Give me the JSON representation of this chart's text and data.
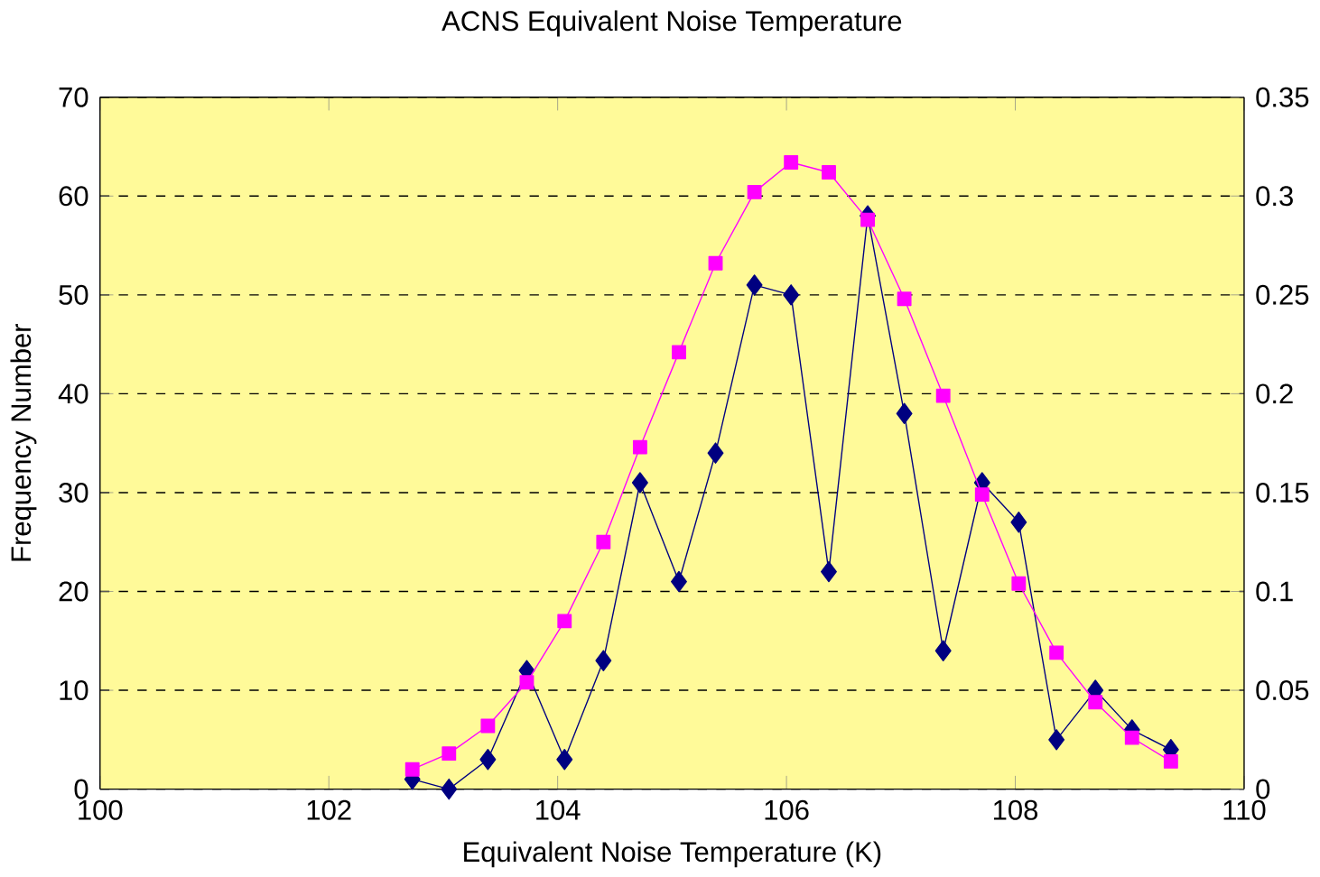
{
  "chart_data": {
    "type": "line",
    "title": "ACNS Equivalent Noise Temperature",
    "xlabel": "Equivalent Noise Temperature (K)",
    "ylabel": "Frequency Number",
    "xlim": [
      100,
      110
    ],
    "xticks": [
      100,
      102,
      104,
      106,
      108,
      110
    ],
    "ylim": [
      0,
      70
    ],
    "yticks": [
      0,
      10,
      20,
      30,
      40,
      50,
      60,
      70
    ],
    "y2lim": [
      0,
      0.35
    ],
    "y2ticks": [
      0,
      0.05,
      0.1,
      0.15,
      0.2,
      0.25,
      0.3,
      0.35
    ],
    "grid": "y",
    "series": [
      {
        "color": "#000080",
        "marker": "diamond",
        "x": [
          102.73,
          103.05,
          103.39,
          103.73,
          104.06,
          104.4,
          104.72,
          105.06,
          105.38,
          105.72,
          106.04,
          106.37,
          106.71,
          107.03,
          107.37,
          107.71,
          108.03,
          108.36,
          108.7,
          109.02,
          109.36
        ],
        "values": [
          1,
          0,
          3,
          12,
          3,
          13,
          31,
          21,
          34,
          51,
          50,
          22,
          58,
          38,
          14,
          31,
          27,
          5,
          10,
          6,
          4
        ]
      },
      {
        "color": "#ff00ff",
        "marker": "square",
        "axis": "y2",
        "x": [
          102.73,
          103.05,
          103.39,
          103.73,
          104.06,
          104.4,
          104.72,
          105.06,
          105.38,
          105.72,
          106.04,
          106.37,
          106.71,
          107.03,
          107.37,
          107.71,
          108.03,
          108.36,
          108.7,
          109.02,
          109.36
        ],
        "values": [
          0.01,
          0.018,
          0.032,
          0.054,
          0.085,
          0.125,
          0.173,
          0.221,
          0.266,
          0.302,
          0.317,
          0.312,
          0.288,
          0.248,
          0.199,
          0.149,
          0.104,
          0.069,
          0.044,
          0.026,
          0.014
        ]
      }
    ]
  }
}
